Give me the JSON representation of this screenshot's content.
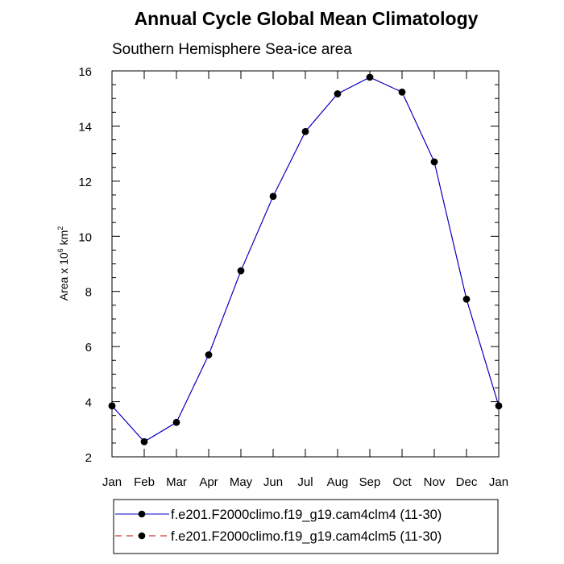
{
  "chart_data": {
    "type": "line",
    "title": "Annual Cycle Global Mean Climatology",
    "subtitle": "Southern Hemisphere Sea-ice area",
    "ylabel": {
      "base": "Area x 10",
      "exponent": "6",
      "unit": " km",
      "unit_exponent": "2"
    },
    "xlabel": "",
    "categories": [
      "Jan",
      "Feb",
      "Mar",
      "Apr",
      "May",
      "Jun",
      "Jul",
      "Aug",
      "Sep",
      "Oct",
      "Nov",
      "Dec",
      "Jan"
    ],
    "ylim": [
      2,
      16
    ],
    "yticks": [
      2,
      4,
      6,
      8,
      10,
      12,
      14,
      16
    ],
    "series": [
      {
        "name": "f.e201.F2000climo.f19_g19.cam4clm4 (11-30)",
        "color": "#0000cc",
        "dash": "solid",
        "values": [
          3.85,
          2.55,
          3.25,
          5.7,
          8.75,
          11.45,
          13.8,
          15.17,
          15.77,
          15.23,
          12.7,
          7.72,
          3.85
        ]
      },
      {
        "name": "f.e201.F2000climo.f19_g19.cam4clm5 (11-30)",
        "color": "#cc0000",
        "dash": "dashed",
        "values": [
          3.85,
          2.55,
          3.25,
          5.7,
          8.75,
          11.45,
          13.8,
          15.17,
          15.77,
          15.23,
          12.7,
          7.72,
          3.85
        ]
      }
    ],
    "legend_position": "bottom"
  }
}
